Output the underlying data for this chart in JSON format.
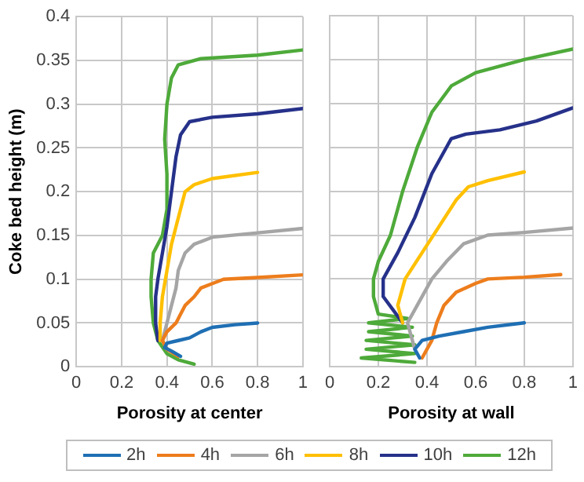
{
  "chart_data": [
    {
      "type": "line",
      "xlabel": "Porosity at center",
      "ylabel": "Coke bed height (m)",
      "xlim": [
        0,
        1
      ],
      "xticks": [
        0,
        0.2,
        0.4,
        0.6,
        0.8,
        1
      ],
      "ylim": [
        0,
        0.4
      ],
      "yticks": [
        0,
        0.05,
        0.1,
        0.15,
        0.2,
        0.25,
        0.3,
        0.35,
        0.4
      ],
      "grid": true,
      "legend": "bottom",
      "marker": "none",
      "line_style": "solid",
      "series": [
        {
          "name": "2h",
          "color": "#1f6fb4",
          "x": [
            0.46,
            0.42,
            0.39,
            0.4,
            0.45,
            0.5,
            0.55,
            0.6,
            0.7,
            0.8
          ],
          "values": [
            0.012,
            0.018,
            0.022,
            0.027,
            0.03,
            0.033,
            0.04,
            0.045,
            0.048,
            0.05
          ]
        },
        {
          "name": "4h",
          "color": "#ed7d1c",
          "x": [
            0.45,
            0.4,
            0.38,
            0.4,
            0.44,
            0.46,
            0.48,
            0.52,
            0.55,
            0.6,
            0.65,
            0.8,
            1.0
          ],
          "values": [
            0.012,
            0.02,
            0.03,
            0.04,
            0.05,
            0.06,
            0.07,
            0.08,
            0.09,
            0.095,
            0.1,
            0.102,
            0.105
          ]
        },
        {
          "name": "6h",
          "color": "#a5a5a5",
          "x": [
            0.4,
            0.38,
            0.4,
            0.42,
            0.44,
            0.45,
            0.48,
            0.52,
            0.6,
            0.8,
            1.0
          ],
          "values": [
            0.02,
            0.03,
            0.05,
            0.07,
            0.09,
            0.11,
            0.13,
            0.14,
            0.148,
            0.153,
            0.158
          ]
        },
        {
          "name": "8h",
          "color": "#ffc000",
          "x": [
            0.37,
            0.37,
            0.38,
            0.4,
            0.42,
            0.44,
            0.46,
            0.48,
            0.52,
            0.6,
            0.8
          ],
          "values": [
            0.03,
            0.05,
            0.08,
            0.11,
            0.14,
            0.16,
            0.18,
            0.2,
            0.208,
            0.215,
            0.222
          ]
        },
        {
          "name": "10h",
          "color": "#26318a",
          "x": [
            0.36,
            0.35,
            0.35,
            0.36,
            0.38,
            0.4,
            0.42,
            0.44,
            0.46,
            0.5,
            0.6,
            0.8,
            1.0
          ],
          "values": [
            0.03,
            0.05,
            0.08,
            0.1,
            0.13,
            0.16,
            0.2,
            0.24,
            0.265,
            0.28,
            0.285,
            0.289,
            0.295
          ]
        },
        {
          "name": "12h",
          "color": "#4eaa3a",
          "x": [
            0.52,
            0.45,
            0.4,
            0.36,
            0.34,
            0.33,
            0.33,
            0.34,
            0.38,
            0.4,
            0.4,
            0.39,
            0.4,
            0.42,
            0.45,
            0.55,
            0.8,
            1.0
          ],
          "values": [
            0.003,
            0.008,
            0.015,
            0.03,
            0.05,
            0.08,
            0.1,
            0.13,
            0.15,
            0.18,
            0.22,
            0.26,
            0.3,
            0.33,
            0.345,
            0.352,
            0.356,
            0.362
          ]
        }
      ]
    },
    {
      "type": "line",
      "xlabel": "Porosity at wall",
      "xlim": [
        0,
        1
      ],
      "xticks": [
        0,
        0.2,
        0.4,
        0.6,
        0.8,
        1
      ],
      "ylim": [
        0,
        0.4
      ],
      "yticks": [
        0,
        0.05,
        0.1,
        0.15,
        0.2,
        0.25,
        0.3,
        0.35,
        0.4
      ],
      "grid": true,
      "tick_labels": "x",
      "marker": "none",
      "line_style": "solid",
      "series": [
        {
          "name": "2h",
          "color": "#1f6fb4",
          "x": [
            0.37,
            0.35,
            0.38,
            0.45,
            0.55,
            0.65,
            0.8
          ],
          "values": [
            0.01,
            0.02,
            0.03,
            0.035,
            0.04,
            0.045,
            0.05
          ]
        },
        {
          "name": "4h",
          "color": "#ed7d1c",
          "x": [
            0.38,
            0.42,
            0.44,
            0.47,
            0.52,
            0.6,
            0.65,
            0.8,
            0.95
          ],
          "values": [
            0.01,
            0.03,
            0.05,
            0.07,
            0.085,
            0.095,
            0.1,
            0.102,
            0.105
          ]
        },
        {
          "name": "6h",
          "color": "#a5a5a5",
          "x": [
            0.35,
            0.32,
            0.36,
            0.42,
            0.48,
            0.55,
            0.65,
            0.8,
            1.0
          ],
          "values": [
            0.02,
            0.05,
            0.07,
            0.1,
            0.12,
            0.14,
            0.15,
            0.153,
            0.158
          ]
        },
        {
          "name": "8h",
          "color": "#ffc000",
          "x": [
            0.3,
            0.28,
            0.31,
            0.38,
            0.45,
            0.52,
            0.57,
            0.65,
            0.8
          ],
          "values": [
            0.05,
            0.07,
            0.1,
            0.13,
            0.16,
            0.19,
            0.205,
            0.212,
            0.222
          ]
        },
        {
          "name": "10h",
          "color": "#26318a",
          "x": [
            0.3,
            0.22,
            0.22,
            0.28,
            0.35,
            0.42,
            0.5,
            0.56,
            0.7,
            0.85,
            1.0
          ],
          "values": [
            0.05,
            0.08,
            0.1,
            0.13,
            0.17,
            0.22,
            0.26,
            0.265,
            0.27,
            0.28,
            0.295
          ]
        },
        {
          "name": "12h",
          "color": "#4eaa3a",
          "x": [
            0.35,
            0.13,
            0.35,
            0.15,
            0.35,
            0.15,
            0.34,
            0.16,
            0.34,
            0.16,
            0.32,
            0.2,
            0.18,
            0.18,
            0.2,
            0.25,
            0.3,
            0.36,
            0.42,
            0.5,
            0.6,
            0.8,
            1.0
          ],
          "values": [
            0.005,
            0.01,
            0.015,
            0.02,
            0.025,
            0.03,
            0.035,
            0.04,
            0.045,
            0.05,
            0.055,
            0.06,
            0.08,
            0.1,
            0.12,
            0.15,
            0.2,
            0.25,
            0.29,
            0.32,
            0.335,
            0.35,
            0.362
          ]
        }
      ]
    }
  ]
}
